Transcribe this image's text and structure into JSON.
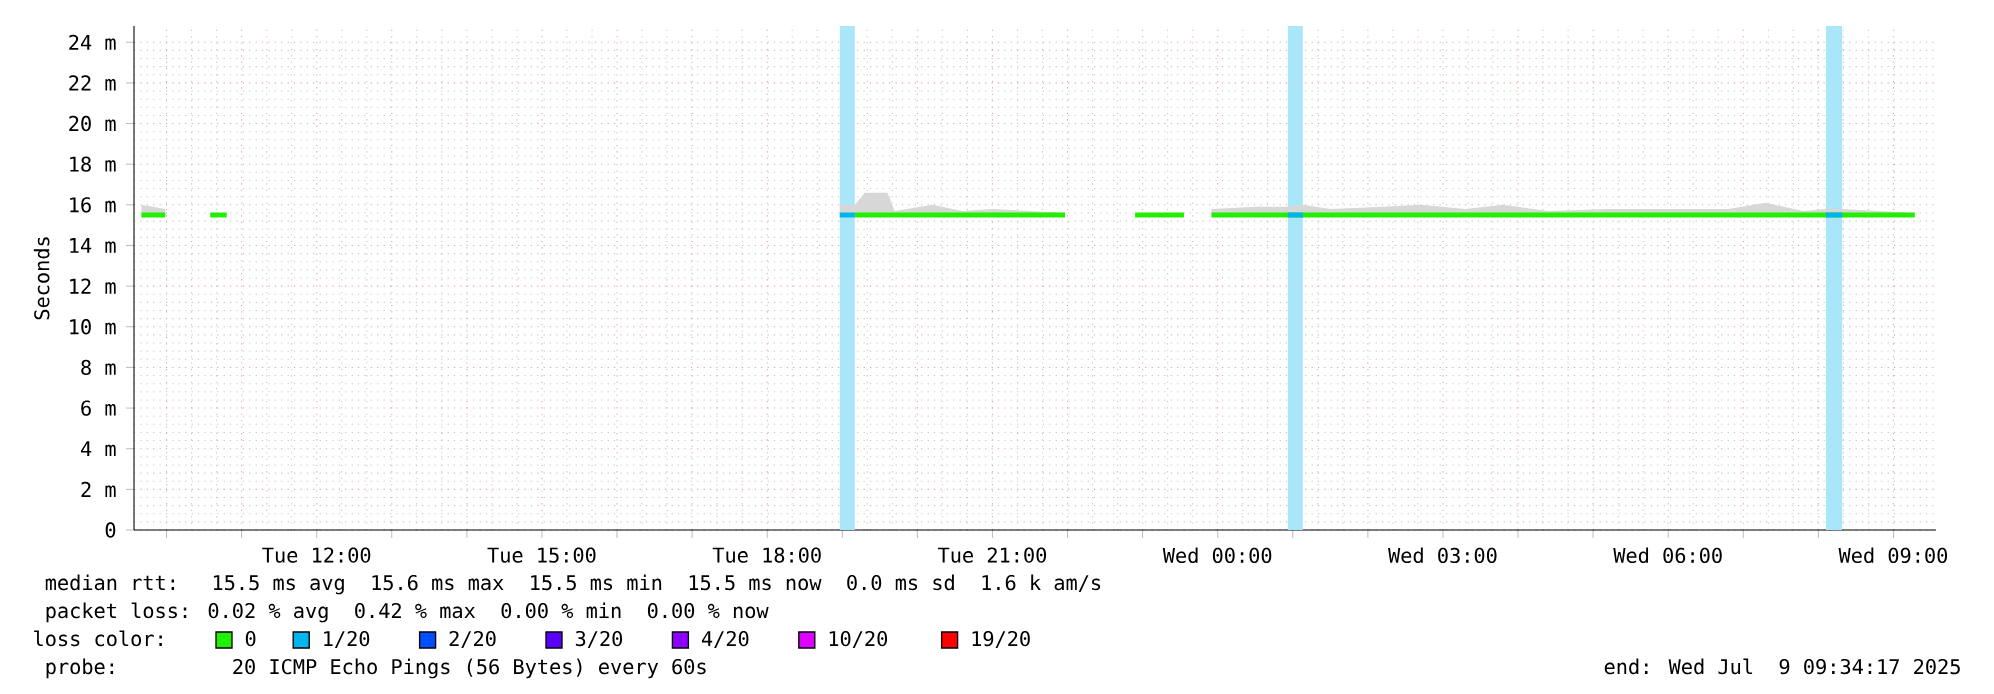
{
  "chart_data": {
    "type": "line",
    "ylabel": "Seconds",
    "xlim": [
      "2025-07-08T09:34",
      "2025-07-09T09:34"
    ],
    "ylim": [
      0,
      24.8
    ],
    "xticks": [
      {
        "value": "2025-07-08T10:00",
        "label": null
      },
      {
        "value": "2025-07-08T11:00",
        "label": null
      },
      {
        "value": "2025-07-08T12:00",
        "label": "Tue 12:00"
      },
      {
        "value": "2025-07-08T13:00",
        "label": null
      },
      {
        "value": "2025-07-08T14:00",
        "label": null
      },
      {
        "value": "2025-07-08T15:00",
        "label": "Tue 15:00"
      },
      {
        "value": "2025-07-08T16:00",
        "label": null
      },
      {
        "value": "2025-07-08T17:00",
        "label": null
      },
      {
        "value": "2025-07-08T18:00",
        "label": "Tue 18:00"
      },
      {
        "value": "2025-07-08T19:00",
        "label": null
      },
      {
        "value": "2025-07-08T20:00",
        "label": null
      },
      {
        "value": "2025-07-08T21:00",
        "label": "Tue 21:00"
      },
      {
        "value": "2025-07-08T22:00",
        "label": null
      },
      {
        "value": "2025-07-08T23:00",
        "label": null
      },
      {
        "value": "2025-07-09T00:00",
        "label": "Wed 00:00"
      },
      {
        "value": "2025-07-09T01:00",
        "label": null
      },
      {
        "value": "2025-07-09T02:00",
        "label": null
      },
      {
        "value": "2025-07-09T03:00",
        "label": "Wed 03:00"
      },
      {
        "value": "2025-07-09T04:00",
        "label": null
      },
      {
        "value": "2025-07-09T05:00",
        "label": null
      },
      {
        "value": "2025-07-09T06:00",
        "label": "Wed 06:00"
      },
      {
        "value": "2025-07-09T07:00",
        "label": null
      },
      {
        "value": "2025-07-09T08:00",
        "label": null
      },
      {
        "value": "2025-07-09T09:00",
        "label": "Wed 09:00"
      }
    ],
    "yticks": [
      0,
      {
        "value": 2,
        "label": "2 m"
      },
      {
        "value": 4,
        "label": "4 m"
      },
      {
        "value": 6,
        "label": "6 m"
      },
      {
        "value": 8,
        "label": "8 m"
      },
      {
        "value": 10,
        "label": "10 m"
      },
      {
        "value": 12,
        "label": "12 m"
      },
      {
        "value": 14,
        "label": "14 m"
      },
      {
        "value": 16,
        "label": "16 m"
      },
      {
        "value": 18,
        "label": "18 m"
      },
      {
        "value": 20,
        "label": "20 m"
      },
      {
        "value": 22,
        "label": "22 m"
      },
      {
        "value": 24,
        "label": "24 m"
      }
    ],
    "grid": true,
    "legend": "bottom",
    "legend_title": "loss color:",
    "marker": "none",
    "line_style": "solid",
    "bands": [
      {
        "axis": "x",
        "from": "2025-07-08T18:58",
        "to": "2025-07-08T19:10",
        "color": "#aae6fa"
      },
      {
        "axis": "x",
        "from": "2025-07-09T00:56",
        "to": "2025-07-09T01:08",
        "color": "#aae6fa"
      },
      {
        "axis": "x",
        "from": "2025-07-09T08:06",
        "to": "2025-07-09T08:19",
        "color": "#aae6fa"
      }
    ],
    "series": [
      {
        "name": "0",
        "color": "#22ee00",
        "x": [
          "2025-07-08T09:40",
          "2025-07-08T09:59",
          "2025-07-08T10:18",
          "2025-07-08T10:35",
          "2025-07-08T10:48",
          "2025-07-08T15:00",
          "2025-07-08T18:58",
          "2025-07-08T19:10",
          "2025-07-08T19:18",
          "2025-07-08T19:36",
          "2025-07-08T19:42",
          "2025-07-08T20:12",
          "2025-07-08T20:36",
          "2025-07-08T21:00",
          "2025-07-08T21:30",
          "2025-07-08T21:58",
          "2025-07-08T22:24",
          "2025-07-08T22:54",
          "2025-07-08T23:33",
          "2025-07-08T23:42",
          "2025-07-08T23:55",
          "2025-07-09T00:30",
          "2025-07-09T00:56",
          "2025-07-09T01:08",
          "2025-07-09T01:30",
          "2025-07-09T02:12",
          "2025-07-09T02:42",
          "2025-07-09T03:18",
          "2025-07-09T03:48",
          "2025-07-09T04:24",
          "2025-07-09T05:12",
          "2025-07-09T06:18",
          "2025-07-09T06:48",
          "2025-07-09T07:18",
          "2025-07-09T07:48",
          "2025-07-09T08:06",
          "2025-07-09T08:19",
          "2025-07-09T08:48",
          "2025-07-09T09:17"
        ],
        "values": [
          15.5,
          15.5,
          null,
          15.5,
          15.5,
          null,
          null,
          15.5,
          15.5,
          15.5,
          15.5,
          15.5,
          15.5,
          15.5,
          15.5,
          15.5,
          null,
          15.5,
          15.5,
          null,
          15.5,
          15.5,
          15.5,
          15.5,
          15.5,
          15.5,
          15.5,
          15.5,
          15.5,
          15.5,
          15.5,
          15.5,
          15.5,
          15.5,
          15.5,
          15.5,
          15.5,
          15.5,
          15.5
        ],
        "lower": [
          15.4,
          15.4,
          null,
          15.4,
          15.4,
          null,
          15.4,
          15.4,
          15.4,
          15.4,
          15.4,
          15.4,
          15.4,
          15.4,
          15.4,
          15.4,
          null,
          15.4,
          15.4,
          null,
          15.4,
          15.4,
          15.4,
          15.4,
          15.4,
          15.4,
          15.4,
          15.4,
          15.4,
          15.4,
          15.4,
          15.4,
          15.4,
          15.4,
          15.4,
          15.4,
          15.4,
          15.4,
          15.4
        ],
        "upper": [
          16.0,
          15.8,
          null,
          15.6,
          15.6,
          null,
          16.0,
          16.0,
          16.6,
          16.6,
          15.7,
          16.0,
          15.7,
          15.8,
          15.7,
          15.6,
          null,
          15.6,
          15.6,
          null,
          15.8,
          15.9,
          15.9,
          16.0,
          15.8,
          15.9,
          16.0,
          15.8,
          16.0,
          15.7,
          15.8,
          15.8,
          15.8,
          16.1,
          15.7,
          15.8,
          15.8,
          15.7,
          15.6
        ]
      },
      {
        "name": "1/20",
        "color": "#00b4f0",
        "x": [
          "2025-07-08T18:58",
          "2025-07-08T19:10",
          "2025-07-08T22:00",
          "2025-07-09T00:56",
          "2025-07-09T01:08",
          "2025-07-09T04:00",
          "2025-07-09T08:06",
          "2025-07-09T08:19"
        ],
        "values": [
          15.5,
          15.5,
          null,
          15.5,
          15.5,
          null,
          15.5,
          15.5
        ]
      },
      {
        "name": "2/20",
        "color": "#0050ff"
      },
      {
        "name": "3/20",
        "color": "#5a00ff"
      },
      {
        "name": "4/20",
        "color": "#8c00ff"
      },
      {
        "name": "10/20",
        "color": "#dc00ff"
      },
      {
        "name": "19/20",
        "color": "#ff0000"
      }
    ],
    "annotations": [
      "median rtt:  15.5 ms avg  15.6 ms max  15.5 ms min  15.5 ms now  0.0 ms sd  1.6 k am/s",
      "packet loss: 0.02 % avg  0.42 % max  0.00 % min  0.00 % now",
      "probe:       20 ICMP Echo Pings (56 Bytes) every 60s",
      "end: Wed Jul  9 09:34:17 2025"
    ]
  }
}
